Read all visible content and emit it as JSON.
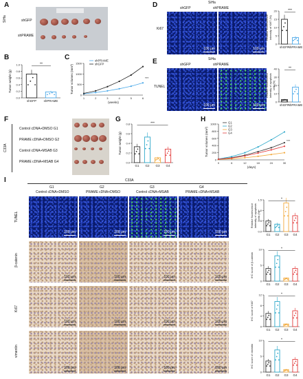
{
  "panels": {
    "A": "A",
    "B": "B",
    "C": "C",
    "D": "D",
    "E": "E",
    "F": "F",
    "G": "G",
    "H": "H",
    "I": "I"
  },
  "A": {
    "cell": "SiHa",
    "row1": "shGFP",
    "row2": "shPRAME"
  },
  "B": {
    "ylabel": "Tumor weight (g)",
    "sig": "**",
    "ticks": [
      "0.0",
      "0.2",
      "0.4",
      "0.6",
      "0.8",
      "1.0"
    ],
    "cats": [
      "shGFP",
      "shPRAME"
    ]
  },
  "C": {
    "ylabel": "Tumor volumes (mm³)",
    "xlabel": "(weeks)",
    "legend": [
      "shPRAME",
      "shGFP"
    ],
    "sig": "***",
    "yticks": [
      "0",
      "500",
      "1000",
      "1500"
    ],
    "xticks": [
      "1",
      "2",
      "3",
      "4",
      "5",
      "6"
    ]
  },
  "D": {
    "cell": "SiHa",
    "col1": "shGFP",
    "col2": "shPRAME",
    "row": "Ki67",
    "scale": "100 μm",
    "ylabel": "Relative fluorescence intensity of Ki67 (%)",
    "sig": "***",
    "yticks": [
      "0",
      "5",
      "10",
      "15",
      "20"
    ],
    "cats": [
      "shGFP",
      "shPRAME"
    ]
  },
  "E": {
    "cell": "SiHa",
    "col1": "shGFP",
    "col2": "shPRAME",
    "row": "TUNEL",
    "scale": "100 μm",
    "ylabel": "Relative fluorescence intensity of apoptosis cells (%)",
    "sig": "**",
    "yticks": [
      "0",
      "10",
      "20",
      "30",
      "40"
    ],
    "cats": [
      "shGFP",
      "shPRAME"
    ]
  },
  "F": {
    "cell": "C33A",
    "rows": [
      "Control cDNA+DMSO G1",
      "PRAME cDNA+DMSO G2",
      "Control cDNA+MSAB G3",
      "PRAME cDNA+MSAB G4"
    ]
  },
  "G": {
    "ylabel": "Tumor weight (g)",
    "sig1": "**",
    "sig2": "***",
    "sig3": "*",
    "yticks": [
      "0.0",
      "0.2",
      "0.4",
      "0.6",
      "0.8"
    ],
    "cats": [
      "G1",
      "G2",
      "G3",
      "G4"
    ]
  },
  "H": {
    "ylabel": "Tumor volumes (mm³)",
    "xlabel": "(days)",
    "legend": [
      "G1",
      "G2",
      "G3",
      "G4"
    ],
    "yticks": [
      "0",
      "200",
      "400",
      "600",
      "800",
      "1000"
    ],
    "xticks": [
      "0",
      "6",
      "12",
      "18",
      "24",
      "30"
    ],
    "sig": "***"
  },
  "I": {
    "cell": "C33A",
    "groups": [
      {
        "g": "G1",
        "t": "Control cDNA+DMSO"
      },
      {
        "g": "G2",
        "t": "PRAME cDNA+DMSO"
      },
      {
        "g": "G3",
        "t": "Control cDNA+MSAB"
      },
      {
        "g": "G4",
        "t": "PRAME cDNA+MSAB"
      }
    ],
    "rows": [
      "TUNEL",
      "β-catenin",
      "Ki67",
      "vimentin"
    ],
    "scale": "100 μm",
    "ylabels": [
      "Relative fluorescence intensity of apoptosis cells (%)",
      "IHC score of β-catenin",
      "IHC score of Ki67",
      "IHC score of vimentin"
    ],
    "cats": [
      "G1",
      "G2",
      "G3",
      "G4"
    ]
  },
  "colors": {
    "shGFP": "#222222",
    "shPRAME": "#4aa8e8",
    "G1": "#333333",
    "G2": "#2aa7c9",
    "G3": "#f2a93b",
    "G4": "#e23b3b"
  },
  "chart_data": [
    {
      "type": "bar",
      "panel": "B",
      "categories": [
        "shGFP",
        "shPRAME"
      ],
      "values": [
        0.72,
        0.18
      ],
      "ylabel": "Tumor weight (g)",
      "ylim": [
        0,
        1.0
      ]
    },
    {
      "type": "line",
      "panel": "C",
      "x": [
        1,
        2,
        3,
        4,
        5,
        6
      ],
      "series": [
        {
          "name": "shPRAME",
          "values": [
            60,
            120,
            200,
            300,
            420,
            580
          ]
        },
        {
          "name": "shGFP",
          "values": [
            80,
            200,
            400,
            650,
            950,
            1350
          ]
        }
      ],
      "xlabel": "(weeks)",
      "ylabel": "Tumor volumes (mm³)",
      "ylim": [
        0,
        1500
      ]
    },
    {
      "type": "bar",
      "panel": "D",
      "categories": [
        "shGFP",
        "shPRAME"
      ],
      "values": [
        15,
        4
      ],
      "ylim": [
        0,
        20
      ]
    },
    {
      "type": "bar",
      "panel": "E",
      "categories": [
        "shGFP",
        "shPRAME"
      ],
      "values": [
        3,
        18
      ],
      "ylim": [
        0,
        40
      ]
    },
    {
      "type": "bar",
      "panel": "G",
      "categories": [
        "G1",
        "G2",
        "G3",
        "G4"
      ],
      "values": [
        0.33,
        0.53,
        0.1,
        0.28
      ],
      "ylabel": "Tumor weight (g)",
      "ylim": [
        0,
        0.8
      ]
    },
    {
      "type": "line",
      "panel": "H",
      "x": [
        0,
        6,
        12,
        18,
        24,
        30
      ],
      "series": [
        {
          "name": "G1",
          "values": [
            20,
            60,
            130,
            230,
            340,
            480
          ]
        },
        {
          "name": "G2",
          "values": [
            25,
            90,
            200,
            360,
            560,
            780
          ]
        },
        {
          "name": "G3",
          "values": [
            15,
            30,
            60,
            100,
            150,
            200
          ]
        },
        {
          "name": "G4",
          "values": [
            20,
            50,
            110,
            190,
            280,
            380
          ]
        }
      ],
      "xlabel": "(days)",
      "ylabel": "Tumor volumes (mm³)",
      "ylim": [
        0,
        1000
      ]
    },
    {
      "type": "bar",
      "panel": "I-TUNEL",
      "categories": [
        "G1",
        "G2",
        "G3",
        "G4"
      ],
      "values": [
        0.5,
        0.35,
        1.35,
        0.75
      ]
    },
    {
      "type": "bar",
      "panel": "I-bcat",
      "categories": [
        "G1",
        "G2",
        "G3",
        "G4"
      ],
      "values": [
        4,
        8,
        1,
        4
      ]
    },
    {
      "type": "bar",
      "panel": "I-Ki67",
      "categories": [
        "G1",
        "G2",
        "G3",
        "G4"
      ],
      "values": [
        5,
        9.5,
        1,
        6
      ]
    },
    {
      "type": "bar",
      "panel": "I-vim",
      "categories": [
        "G1",
        "G2",
        "G3",
        "G4"
      ],
      "values": [
        3.5,
        7,
        0.8,
        4
      ]
    }
  ]
}
